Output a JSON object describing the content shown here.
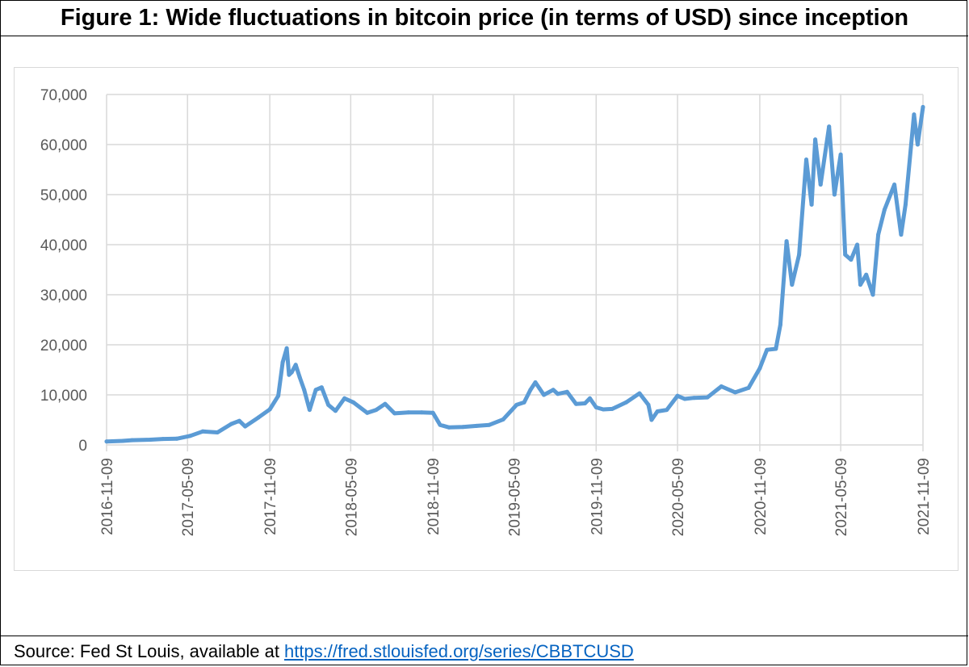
{
  "figure": {
    "title": "Figure 1: Wide fluctuations in bitcoin price (in terms of USD) since inception"
  },
  "source": {
    "prefix": "Source: Fed St Louis, available at",
    "link_text": "https://fred.stlouisfed.org/series/CBBTCUSD"
  },
  "colors": {
    "line": "#5b9bd5",
    "grid": "#d9d9d9",
    "tick_text": "#595959"
  },
  "chart_data": {
    "type": "line",
    "title": "Figure 1: Wide fluctuations in bitcoin price (in terms of USD) since inception",
    "xlabel": "",
    "ylabel": "",
    "x_type": "date",
    "xlim": [
      "2016-11-09",
      "2021-11-09"
    ],
    "ylim": [
      0,
      70000
    ],
    "grid": true,
    "legend": "none",
    "y_ticks": [
      0,
      10000,
      20000,
      30000,
      40000,
      50000,
      60000,
      70000
    ],
    "y_tick_labels": [
      "0",
      "10,000",
      "20,000",
      "30,000",
      "40,000",
      "50,000",
      "60,000",
      "70,000"
    ],
    "x_ticks": [
      "2016-11-09",
      "2017-05-09",
      "2017-11-09",
      "2018-05-09",
      "2018-11-09",
      "2019-05-09",
      "2019-11-09",
      "2020-05-09",
      "2020-11-09",
      "2021-05-09",
      "2021-11-09"
    ],
    "series": [
      {
        "x": [
          "2016-11-09",
          "2016-12-15",
          "2017-01-05",
          "2017-02-15",
          "2017-03-15",
          "2017-04-15",
          "2017-05-15",
          "2017-06-12",
          "2017-07-15",
          "2017-08-15",
          "2017-09-02",
          "2017-09-15",
          "2017-10-15",
          "2017-11-09",
          "2017-11-28",
          "2017-12-08",
          "2017-12-17",
          "2017-12-22",
          "2017-12-28",
          "2018-01-06",
          "2018-01-15",
          "2018-01-25",
          "2018-02-06",
          "2018-02-20",
          "2018-03-05",
          "2018-03-20",
          "2018-04-05",
          "2018-04-25",
          "2018-05-15",
          "2018-06-15",
          "2018-07-05",
          "2018-07-25",
          "2018-08-15",
          "2018-09-15",
          "2018-10-15",
          "2018-11-09",
          "2018-11-25",
          "2018-12-15",
          "2019-01-15",
          "2019-02-15",
          "2019-03-15",
          "2019-04-15",
          "2019-05-15",
          "2019-06-01",
          "2019-06-15",
          "2019-06-26",
          "2019-07-05",
          "2019-07-15",
          "2019-08-05",
          "2019-08-15",
          "2019-09-05",
          "2019-09-25",
          "2019-10-15",
          "2019-10-26",
          "2019-11-09",
          "2019-11-25",
          "2019-12-15",
          "2020-01-15",
          "2020-02-14",
          "2020-03-05",
          "2020-03-12",
          "2020-03-25",
          "2020-04-15",
          "2020-05-09",
          "2020-05-25",
          "2020-06-15",
          "2020-07-15",
          "2020-08-15",
          "2020-09-15",
          "2020-10-15",
          "2020-11-09",
          "2020-11-25",
          "2020-12-15",
          "2020-12-25",
          "2021-01-08",
          "2021-01-20",
          "2021-02-05",
          "2021-02-21",
          "2021-03-05",
          "2021-03-13",
          "2021-03-25",
          "2021-04-13",
          "2021-04-25",
          "2021-05-09",
          "2021-05-19",
          "2021-06-01",
          "2021-06-15",
          "2021-06-22",
          "2021-07-05",
          "2021-07-20",
          "2021-08-01",
          "2021-08-15",
          "2021-09-06",
          "2021-09-21",
          "2021-10-01",
          "2021-10-20",
          "2021-10-28",
          "2021-11-09"
        ],
        "values": [
          700,
          800,
          950,
          1050,
          1200,
          1250,
          1800,
          2700,
          2500,
          4200,
          4800,
          3700,
          5500,
          7100,
          9800,
          16500,
          19300,
          14000,
          14500,
          16000,
          13500,
          11000,
          7000,
          11000,
          11500,
          8000,
          6800,
          9300,
          8500,
          6400,
          7000,
          8200,
          6300,
          6500,
          6500,
          6400,
          4000,
          3500,
          3600,
          3800,
          4000,
          5100,
          8000,
          8500,
          11000,
          12500,
          11300,
          10000,
          11000,
          10200,
          10600,
          8200,
          8300,
          9300,
          7500,
          7100,
          7200,
          8500,
          10300,
          8000,
          5000,
          6700,
          7000,
          9800,
          9200,
          9400,
          9500,
          11700,
          10500,
          11400,
          15300,
          19000,
          19200,
          24000,
          40700,
          32000,
          38000,
          57000,
          48000,
          61000,
          52000,
          63600,
          50000,
          58000,
          38000,
          37000,
          40000,
          32000,
          34000,
          30000,
          42000,
          47000,
          52000,
          42000,
          48000,
          66000,
          60000,
          67500
        ]
      }
    ]
  }
}
